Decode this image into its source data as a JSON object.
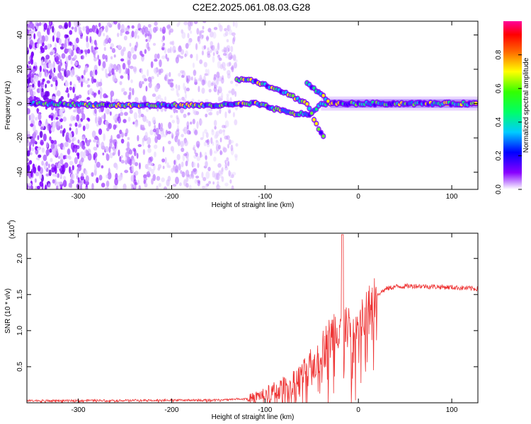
{
  "title": "C2E2.2025.061.08.03.G28",
  "chart_data": [
    {
      "type": "heatmap",
      "xlabel": "Height of straight line (km)",
      "ylabel": "Frequency (Hz)",
      "xlim": [
        -355,
        128
      ],
      "ylim": [
        -50,
        48
      ],
      "xticks": [
        -300,
        -200,
        -100,
        0,
        100
      ],
      "yticks": [
        -40,
        -20,
        0,
        20,
        40
      ],
      "colorbar": {
        "label": "Normalized spectral amplitude",
        "range": [
          0.0,
          1.0
        ],
        "ticks": [
          0.0,
          0.2,
          0.4,
          0.6,
          0.8
        ],
        "colormap": "rainbow (purple-blue-cyan-green-yellow-red-magenta)"
      },
      "features": [
        {
          "name": "main",
          "points": [
            [
              -350,
              0
            ],
            [
              -250,
              -1
            ],
            [
              -150,
              -1
            ],
            [
              -110,
              0
            ],
            [
              -90,
              -3
            ],
            [
              -70,
              -6
            ],
            [
              -50,
              -6
            ],
            [
              -40,
              0
            ],
            [
              -30,
              0
            ],
            [
              0,
              0
            ],
            [
              128,
              0
            ]
          ]
        },
        {
          "name": "upper",
          "points": [
            [
              -130,
              14
            ],
            [
              -115,
              14
            ],
            [
              -100,
              11
            ],
            [
              -85,
              8
            ],
            [
              -70,
              4
            ],
            [
              -55,
              0
            ],
            [
              -45,
              -12
            ],
            [
              -35,
              -22
            ]
          ]
        },
        {
          "name": "branch",
          "points": [
            [
              -55,
              12
            ],
            [
              -40,
              5
            ],
            [
              -30,
              1
            ]
          ]
        }
      ],
      "grid": false
    },
    {
      "type": "line",
      "xlabel": "Height of straight line (km)",
      "ylabel": "SNR (10 * v/v)",
      "scale_label": "(x10",
      "scale_exp": "4",
      "scale_close": ")",
      "xlim": [
        -355,
        128
      ],
      "ylim": [
        0,
        2.35
      ],
      "xticks": [
        -300,
        -200,
        -100,
        0,
        100
      ],
      "yticks": [
        0.5,
        1.0,
        1.5,
        2.0
      ],
      "ytick_labels": [
        "0.5",
        "1.0",
        "1.5",
        "2.0"
      ],
      "series": [
        {
          "color": "#ee3333",
          "x": [
            -355,
            -250,
            -150,
            -120,
            -100,
            -80,
            -60,
            -50,
            -40,
            -30,
            -20,
            -17,
            -10,
            0,
            10,
            20,
            30,
            40,
            60,
            80,
            100,
            128
          ],
          "y": [
            0.03,
            0.035,
            0.04,
            0.06,
            0.12,
            0.2,
            0.35,
            0.5,
            0.7,
            0.9,
            1.1,
            1.25,
            0.95,
            1.05,
            1.25,
            1.5,
            1.58,
            1.61,
            1.62,
            1.61,
            1.6,
            1.58
          ]
        }
      ],
      "grid": false
    }
  ]
}
